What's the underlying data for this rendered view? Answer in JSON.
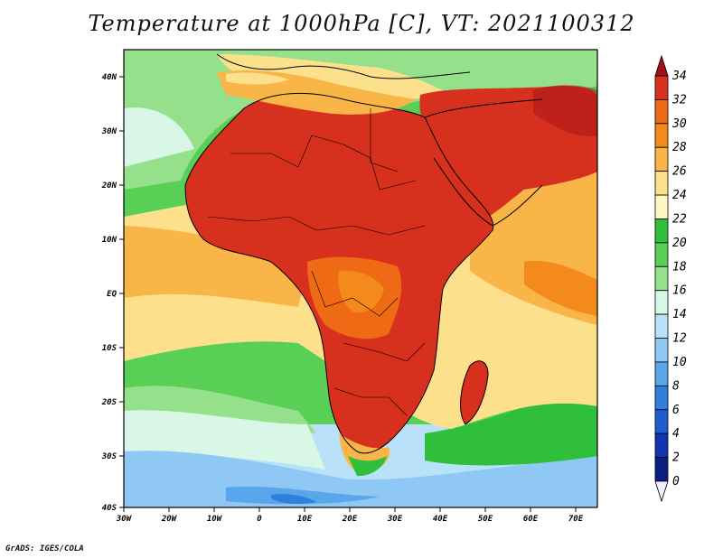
{
  "title": "Temperature at 1000hPa [C], VT: 2021100312",
  "credit": "GrADS: IGES/COLA",
  "map": {
    "lat_labels": [
      "40N",
      "30N",
      "20N",
      "10N",
      "EQ",
      "10S",
      "20S",
      "30S",
      "40S"
    ],
    "lon_labels": [
      "30W",
      "20W",
      "10W",
      "0",
      "10E",
      "20E",
      "30E",
      "40E",
      "50E",
      "60E",
      "70E"
    ]
  },
  "colorbar": {
    "labels": [
      "34",
      "32",
      "30",
      "28",
      "26",
      "24",
      "22",
      "20",
      "18",
      "16",
      "14",
      "12",
      "10",
      "8",
      "6",
      "4",
      "2",
      "0"
    ],
    "colors": [
      "#a50f15",
      "#d7301f",
      "#ef6a14",
      "#f58a1c",
      "#f9b548",
      "#fde08c",
      "#fff8c4",
      "#2fbf3a",
      "#59cf56",
      "#95e08a",
      "#d9f7e6",
      "#b9e2fa",
      "#8fc8f5",
      "#5aa6ea",
      "#2f7fdc",
      "#1f5bd0",
      "#1134b0",
      "#0a1f80",
      "#eeeeff"
    ]
  }
}
